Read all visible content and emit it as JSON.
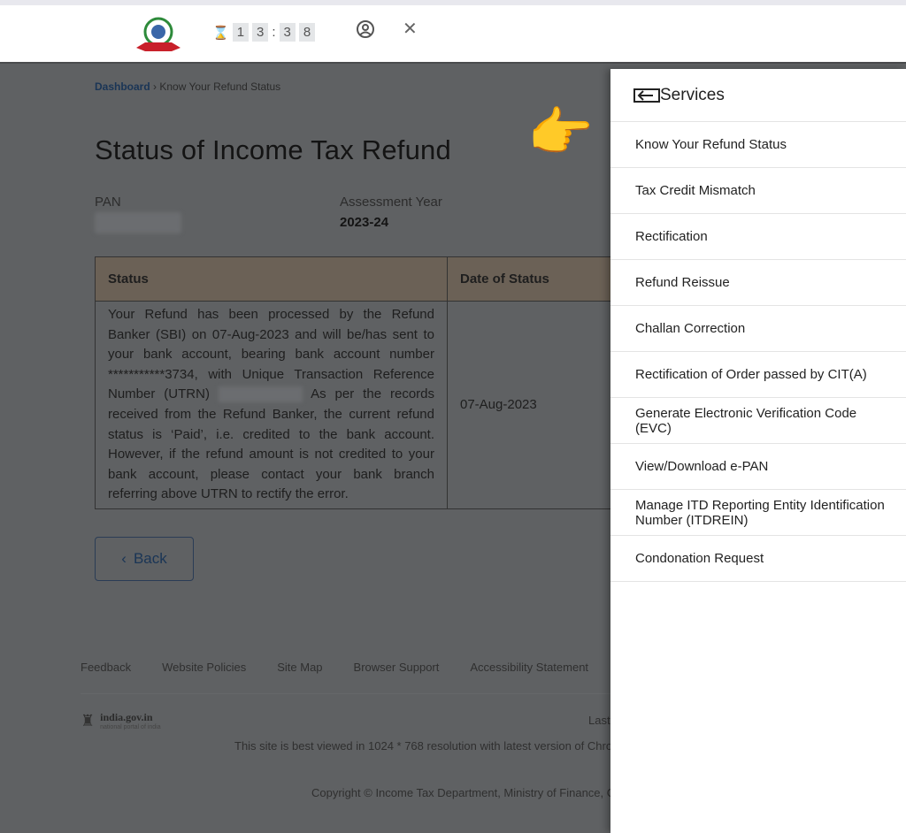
{
  "header": {
    "timer": [
      "1",
      "3",
      ":",
      "3",
      "8"
    ],
    "icons": [
      "emblem-logo",
      "hourglass-icon",
      "user-icon",
      "close-icon"
    ]
  },
  "breadcrumb": {
    "home": "Dashboard",
    "sep": "›",
    "current": "Know Your Refund Status"
  },
  "page_title": "Status of Income Tax Refund",
  "pan": {
    "label": "PAN"
  },
  "assessment_year": {
    "label": "Assessment Year",
    "value": "2023-24"
  },
  "table": {
    "headers": [
      "Status",
      "Date of Status"
    ],
    "rows": [
      {
        "status_a": "Your Refund has been processed by the Refund Banker (SBI) on 07-Aug-2023 and will be/has sent to your bank account, bearing bank account number ***********3734, with Unique Transaction Reference Number (UTRN)",
        "status_b": "As per the records received from the Refund Banker, the current refund status is ‘Paid’, i.e. credited to the bank account. However, if the refund amount is not credited to your bank account, please contact your bank branch referring above UTRN to rectify the error.",
        "date": "07-Aug-2023"
      }
    ]
  },
  "back_label": "Back",
  "footer": {
    "links": [
      "Feedback",
      "Website Policies",
      "Site Map",
      "Browser Support",
      "Accessibility Statement"
    ],
    "gov_name": "india.gov.in",
    "gov_sub": "national portal of india",
    "last": "Last",
    "best_viewed": "This site is best viewed in 1024 * 768 resolution with latest version of Chro",
    "copyright": "Copyright © Income Tax Department, Ministry of Finance, G"
  },
  "services": {
    "title": "Services",
    "items": [
      "Know Your Refund Status",
      "Tax Credit Mismatch",
      "Rectification",
      "Refund Reissue",
      "Challan Correction",
      "Rectification of Order passed by CIT(A)",
      "Generate Electronic Verification Code (EVC)",
      "View/Download e-PAN",
      "Manage ITD Reporting Entity Identification Number (ITDREIN)",
      "Condonation Request"
    ]
  },
  "pointer_emoji": "👉"
}
